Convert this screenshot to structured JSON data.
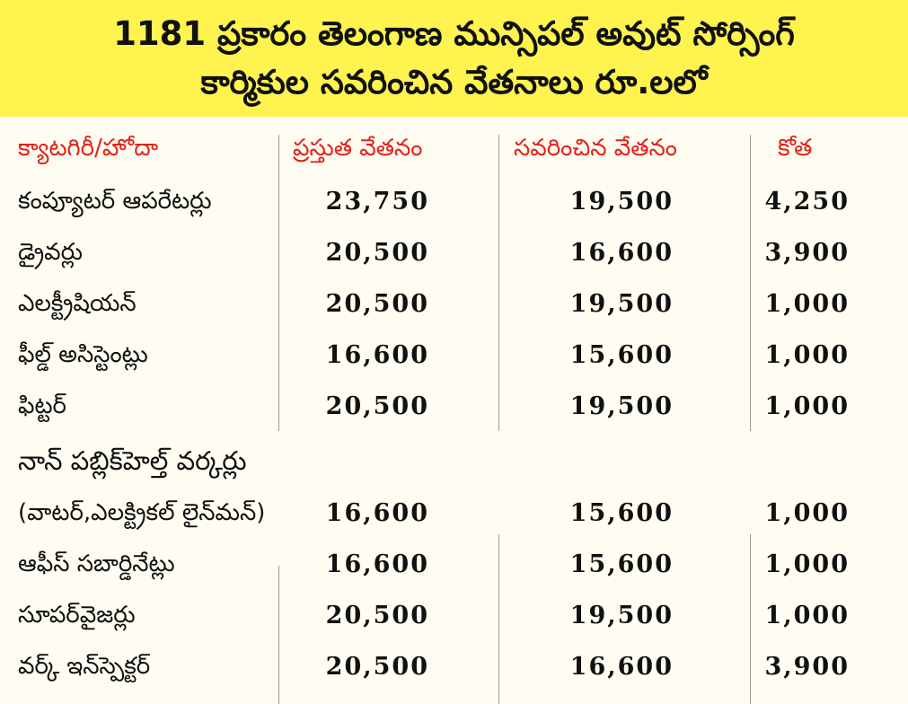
{
  "header": {
    "title": [
      "1181 ప్రకారం తెలంగాణ మున్సిపల్ అవుట్ సోర్సింగ్",
      "కార్మికుల సవరించిన వేతనాలు రూ.లలో"
    ]
  },
  "table": {
    "columns": [
      "క్యాటగిరీ/హోదా",
      "ప్రస్తుత వేతనం",
      "సవరించిన వేతనం",
      "కోత"
    ],
    "rows": [
      {
        "category": "కంప్యూటర్ ఆపరేటర్లు",
        "current": "23,750",
        "revised": "19,500",
        "cut": "4,250"
      },
      {
        "category": "డ్రైవర్లు",
        "current": "20,500",
        "revised": "16,600",
        "cut": "3,900"
      },
      {
        "category": "ఎలక్ట్రీషియన్",
        "current": "20,500",
        "revised": "19,500",
        "cut": "1,000"
      },
      {
        "category": "ఫీల్డ్ అసిస్టెంట్లు",
        "current": "16,600",
        "revised": "15,600",
        "cut": "1,000"
      },
      {
        "category": "ఫిట్టర్",
        "current": "20,500",
        "revised": "19,500",
        "cut": "1,000"
      },
      {
        "category": "నాన్ పబ్లిక్‌హెల్త్ వర్కర్లు",
        "subcategory": "(వాటర్,ఎలక్ట్రికల్ లైన్‌మన్)",
        "current": "16,600",
        "revised": "15,600",
        "cut": "1,000"
      },
      {
        "category": "ఆఫీస్ సబార్డినేట్లు",
        "current": "16,600",
        "revised": "15,600",
        "cut": "1,000"
      },
      {
        "category": "సూపర్‌వైజర్లు",
        "current": "20,500",
        "revised": "19,500",
        "cut": "1,000"
      },
      {
        "category": "వర్క్ ఇన్‌స్పెక్టర్",
        "current": "20,500",
        "revised": "16,600",
        "cut": "3,900"
      }
    ]
  }
}
